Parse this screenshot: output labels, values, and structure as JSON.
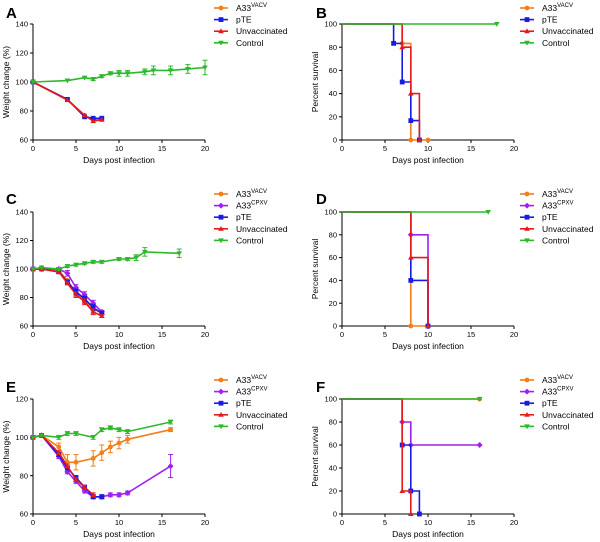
{
  "chart_data": [
    {
      "panel": "A",
      "type": "line",
      "xlabel": "Days post infection",
      "ylabel": "Weight change (%)",
      "xlim": [
        0,
        20
      ],
      "ylim": [
        60,
        140
      ],
      "xticks": [
        0,
        5,
        10,
        15,
        20
      ],
      "yticks": [
        60,
        80,
        100,
        120,
        140
      ],
      "legend": [
        {
          "name": "A33",
          "sup": "VACV",
          "color": "#F07F1C",
          "marker": "circle"
        },
        {
          "name": "pTE",
          "sup": "",
          "color": "#1A1AE6",
          "marker": "square"
        },
        {
          "name": "Unvaccinated",
          "sup": "",
          "color": "#E41A1C",
          "marker": "triangle-up"
        },
        {
          "name": "Control",
          "sup": "",
          "color": "#2DB82D",
          "marker": "triangle-down"
        }
      ],
      "series": [
        {
          "name": "A33 VACV",
          "color": "#F07F1C",
          "marker": "circle",
          "x": [
            0,
            4,
            6,
            7,
            8
          ],
          "y": [
            100,
            88,
            77,
            74,
            75
          ],
          "err": [
            0,
            0,
            0,
            0,
            0
          ]
        },
        {
          "name": "pTE",
          "color": "#1A1AE6",
          "marker": "square",
          "x": [
            0,
            4,
            6,
            7,
            8
          ],
          "y": [
            100,
            88,
            76,
            75,
            75
          ],
          "err": [
            0,
            0,
            0,
            0,
            0
          ]
        },
        {
          "name": "Unvaccinated",
          "color": "#E41A1C",
          "marker": "triangle-up",
          "x": [
            0,
            4,
            6,
            7,
            8
          ],
          "y": [
            100,
            87.5,
            77,
            73,
            74
          ],
          "err": [
            0,
            0,
            0,
            0,
            0
          ]
        },
        {
          "name": "Control",
          "color": "#2DB82D",
          "marker": "triangle-down",
          "x": [
            0,
            4,
            6,
            7,
            8,
            9,
            10,
            11,
            13,
            14,
            16,
            18,
            20
          ],
          "y": [
            100,
            101,
            103,
            102,
            104,
            106,
            106,
            106,
            107,
            108,
            108,
            109,
            110
          ],
          "err": [
            0,
            0,
            0,
            1,
            1,
            1,
            2,
            2,
            2,
            3,
            3,
            3,
            5
          ]
        }
      ]
    },
    {
      "panel": "B",
      "type": "survival",
      "xlabel": "Days post infection",
      "ylabel": "Percent survival",
      "xlim": [
        0,
        20
      ],
      "ylim": [
        0,
        100
      ],
      "xticks": [
        0,
        5,
        10,
        15,
        20
      ],
      "yticks": [
        0,
        20,
        40,
        60,
        80,
        100
      ],
      "legend": [
        {
          "name": "A33",
          "sup": "VACV",
          "color": "#F07F1C",
          "marker": "circle"
        },
        {
          "name": "pTE",
          "sup": "",
          "color": "#1A1AE6",
          "marker": "square"
        },
        {
          "name": "Unvaccinated",
          "sup": "",
          "color": "#E41A1C",
          "marker": "triangle-up"
        },
        {
          "name": "Control",
          "sup": "",
          "color": "#2DB82D",
          "marker": "triangle-down"
        }
      ],
      "series": [
        {
          "name": "A33 VACV",
          "color": "#F07F1C",
          "marker": "circle",
          "x": [
            0,
            7,
            8,
            10
          ],
          "y": [
            100,
            83.3,
            0,
            0
          ]
        },
        {
          "name": "pTE",
          "color": "#1A1AE6",
          "marker": "square",
          "x": [
            0,
            6,
            7,
            8,
            9
          ],
          "y": [
            100,
            83.3,
            50,
            16.7,
            0
          ]
        },
        {
          "name": "Unvaccinated",
          "color": "#E41A1C",
          "marker": "triangle-up",
          "x": [
            0,
            7,
            8,
            9
          ],
          "y": [
            100,
            80,
            40,
            0
          ]
        },
        {
          "name": "Control",
          "color": "#2DB82D",
          "marker": "triangle-down",
          "x": [
            0,
            18
          ],
          "y": [
            100,
            100
          ]
        }
      ]
    },
    {
      "panel": "C",
      "type": "line",
      "xlabel": "Days post infection",
      "ylabel": "Weight change (%)",
      "xlim": [
        0,
        20
      ],
      "ylim": [
        60,
        140
      ],
      "xticks": [
        0,
        5,
        10,
        15,
        20
      ],
      "yticks": [
        60,
        80,
        100,
        120,
        140
      ],
      "legend": [
        {
          "name": "A33",
          "sup": "VACV",
          "color": "#F07F1C",
          "marker": "circle"
        },
        {
          "name": "A33",
          "sup": "CPXV",
          "color": "#A020F0",
          "marker": "diamond"
        },
        {
          "name": "pTE",
          "sup": "",
          "color": "#1A1AE6",
          "marker": "square"
        },
        {
          "name": "Unvaccinated",
          "sup": "",
          "color": "#E41A1C",
          "marker": "triangle-up"
        },
        {
          "name": "Control",
          "sup": "",
          "color": "#2DB82D",
          "marker": "triangle-down"
        }
      ],
      "series": [
        {
          "name": "A33 VACV",
          "color": "#F07F1C",
          "marker": "circle",
          "x": [
            0,
            1,
            3,
            4,
            5,
            6,
            7,
            8
          ],
          "y": [
            100,
            101,
            99,
            92,
            83,
            78,
            72,
            69
          ],
          "err": [
            0,
            0,
            1,
            1,
            2,
            2,
            2,
            1
          ]
        },
        {
          "name": "A33 CPXV",
          "color": "#A020F0",
          "marker": "diamond",
          "x": [
            0,
            1,
            3,
            4,
            5,
            6,
            7,
            8
          ],
          "y": [
            100,
            100,
            100,
            97,
            87,
            82,
            76,
            70
          ],
          "err": [
            0,
            0,
            1,
            2,
            2,
            2,
            2,
            1
          ]
        },
        {
          "name": "pTE",
          "color": "#1A1AE6",
          "marker": "square",
          "x": [
            0,
            1,
            3,
            4,
            5,
            6,
            7,
            8
          ],
          "y": [
            100,
            100,
            98,
            91,
            84,
            79,
            73,
            69
          ],
          "err": [
            0,
            0,
            1,
            1,
            2,
            2,
            2,
            1
          ]
        },
        {
          "name": "Unvaccinated",
          "color": "#E41A1C",
          "marker": "triangle-up",
          "x": [
            0,
            1,
            3,
            4,
            5,
            6,
            7,
            8
          ],
          "y": [
            100,
            100,
            98,
            90,
            82,
            77,
            70,
            67
          ],
          "err": [
            0,
            0,
            1,
            1,
            2,
            2,
            2,
            1
          ]
        },
        {
          "name": "Control",
          "color": "#2DB82D",
          "marker": "triangle-down",
          "x": [
            0,
            1,
            3,
            4,
            5,
            6,
            7,
            8,
            10,
            11,
            12,
            13,
            17
          ],
          "y": [
            100,
            101,
            100,
            102,
            103,
            104,
            105,
            105,
            107,
            107,
            108,
            112,
            111
          ],
          "err": [
            0,
            0,
            1,
            1,
            1,
            1,
            1,
            1,
            1,
            1,
            2,
            3,
            3
          ]
        }
      ]
    },
    {
      "panel": "D",
      "type": "survival",
      "xlabel": "Days post infection",
      "ylabel": "Percent survival",
      "xlim": [
        0,
        20
      ],
      "ylim": [
        0,
        100
      ],
      "xticks": [
        0,
        5,
        10,
        15,
        20
      ],
      "yticks": [
        0,
        20,
        40,
        60,
        80,
        100
      ],
      "legend": [
        {
          "name": "A33",
          "sup": "VACV",
          "color": "#F07F1C",
          "marker": "circle"
        },
        {
          "name": "A33",
          "sup": "CPXV",
          "color": "#A020F0",
          "marker": "diamond"
        },
        {
          "name": "pTE",
          "sup": "",
          "color": "#1A1AE6",
          "marker": "square"
        },
        {
          "name": "Unvaccinated",
          "sup": "",
          "color": "#E41A1C",
          "marker": "triangle-up"
        },
        {
          "name": "Control",
          "sup": "",
          "color": "#2DB82D",
          "marker": "triangle-down"
        }
      ],
      "series": [
        {
          "name": "A33 VACV",
          "color": "#F07F1C",
          "marker": "circle",
          "x": [
            0,
            8,
            10
          ],
          "y": [
            100,
            0,
            0
          ]
        },
        {
          "name": "A33 CPXV",
          "color": "#A020F0",
          "marker": "diamond",
          "x": [
            0,
            8,
            10
          ],
          "y": [
            100,
            80,
            0
          ]
        },
        {
          "name": "pTE",
          "color": "#1A1AE6",
          "marker": "square",
          "x": [
            0,
            8,
            10
          ],
          "y": [
            100,
            40,
            0
          ]
        },
        {
          "name": "Unvaccinated",
          "color": "#E41A1C",
          "marker": "triangle-up",
          "x": [
            0,
            8,
            10
          ],
          "y": [
            100,
            60,
            0
          ]
        },
        {
          "name": "Control",
          "color": "#2DB82D",
          "marker": "triangle-down",
          "x": [
            0,
            17
          ],
          "y": [
            100,
            100
          ]
        }
      ]
    },
    {
      "panel": "E",
      "type": "line",
      "xlabel": "Days post infection",
      "ylabel": "Weight change (%)",
      "xlim": [
        0,
        20
      ],
      "ylim": [
        60,
        120
      ],
      "xticks": [
        0,
        5,
        10,
        15,
        20
      ],
      "yticks": [
        60,
        80,
        100,
        120
      ],
      "legend": [
        {
          "name": "A33",
          "sup": "VACV",
          "color": "#F07F1C",
          "marker": "circle"
        },
        {
          "name": "A33",
          "sup": "CPXV",
          "color": "#A020F0",
          "marker": "diamond"
        },
        {
          "name": "pTE",
          "sup": "",
          "color": "#1A1AE6",
          "marker": "square"
        },
        {
          "name": "Unvaccinated",
          "sup": "",
          "color": "#E41A1C",
          "marker": "triangle-up"
        },
        {
          "name": "Control",
          "sup": "",
          "color": "#2DB82D",
          "marker": "triangle-down"
        }
      ],
      "series": [
        {
          "name": "A33 VACV",
          "color": "#F07F1C",
          "marker": "circle",
          "x": [
            0,
            1,
            3,
            4,
            5,
            7,
            8,
            9,
            10,
            11,
            16
          ],
          "y": [
            100,
            101,
            95,
            87,
            87,
            89,
            92,
            95,
            97,
            99,
            104
          ],
          "err": [
            0,
            0,
            2,
            4,
            4,
            4,
            4,
            3,
            3,
            2,
            1
          ]
        },
        {
          "name": "A33 CPXV",
          "color": "#A020F0",
          "marker": "diamond",
          "x": [
            0,
            1,
            3,
            4,
            5,
            6,
            7,
            8,
            9,
            10,
            11,
            16
          ],
          "y": [
            100,
            101,
            90,
            82,
            77,
            72,
            69,
            69,
            70,
            70,
            71,
            85
          ],
          "err": [
            0,
            0,
            1,
            1,
            1,
            1,
            1,
            1,
            1,
            1,
            1,
            6
          ]
        },
        {
          "name": "pTE",
          "color": "#1A1AE6",
          "marker": "square",
          "x": [
            0,
            1,
            3,
            4,
            5,
            6,
            7,
            8
          ],
          "y": [
            100,
            101,
            91,
            84,
            79,
            74,
            69,
            69
          ],
          "err": [
            0,
            0,
            1,
            1,
            1,
            1,
            1,
            1
          ]
        },
        {
          "name": "Unvaccinated",
          "color": "#E41A1C",
          "marker": "triangle-up",
          "x": [
            0,
            1,
            3,
            4,
            5,
            6,
            7
          ],
          "y": [
            100,
            101,
            92,
            85,
            78,
            74,
            70
          ],
          "err": [
            0,
            0,
            1,
            1,
            1,
            1,
            1
          ]
        },
        {
          "name": "Control",
          "color": "#2DB82D",
          "marker": "triangle-down",
          "x": [
            0,
            1,
            3,
            4,
            5,
            7,
            8,
            9,
            10,
            11,
            16
          ],
          "y": [
            100,
            101,
            100,
            102,
            102,
            100,
            104,
            105,
            104,
            103,
            108
          ],
          "err": [
            0,
            0,
            1,
            1,
            1,
            1,
            1,
            1,
            1,
            1,
            1
          ]
        }
      ]
    },
    {
      "panel": "F",
      "type": "survival",
      "xlabel": "Days post infection",
      "ylabel": "Percent survival",
      "xlim": [
        0,
        20
      ],
      "ylim": [
        0,
        100
      ],
      "xticks": [
        0,
        5,
        10,
        15,
        20
      ],
      "yticks": [
        0,
        20,
        40,
        60,
        80,
        100
      ],
      "legend": [
        {
          "name": "A33",
          "sup": "VACV",
          "color": "#F07F1C",
          "marker": "circle"
        },
        {
          "name": "A33",
          "sup": "CPXV",
          "color": "#A020F0",
          "marker": "diamond"
        },
        {
          "name": "pTE",
          "sup": "",
          "color": "#1A1AE6",
          "marker": "square"
        },
        {
          "name": "Unvaccinated",
          "sup": "",
          "color": "#E41A1C",
          "marker": "triangle-up"
        },
        {
          "name": "Control",
          "sup": "",
          "color": "#2DB82D",
          "marker": "triangle-down"
        }
      ],
      "series": [
        {
          "name": "A33 VACV",
          "color": "#F07F1C",
          "marker": "circle",
          "x": [
            0,
            16
          ],
          "y": [
            100,
            100
          ]
        },
        {
          "name": "A33 CPXV",
          "color": "#A020F0",
          "marker": "diamond",
          "x": [
            0,
            7,
            8,
            16
          ],
          "y": [
            100,
            80,
            60,
            60
          ]
        },
        {
          "name": "pTE",
          "color": "#1A1AE6",
          "marker": "square",
          "x": [
            0,
            7,
            8,
            9
          ],
          "y": [
            100,
            60,
            20,
            0
          ]
        },
        {
          "name": "Unvaccinated",
          "color": "#E41A1C",
          "marker": "triangle-up",
          "x": [
            0,
            7,
            8
          ],
          "y": [
            100,
            20,
            0
          ]
        },
        {
          "name": "Control",
          "color": "#2DB82D",
          "marker": "triangle-down",
          "x": [
            0,
            16
          ],
          "y": [
            100,
            100
          ]
        }
      ]
    }
  ]
}
